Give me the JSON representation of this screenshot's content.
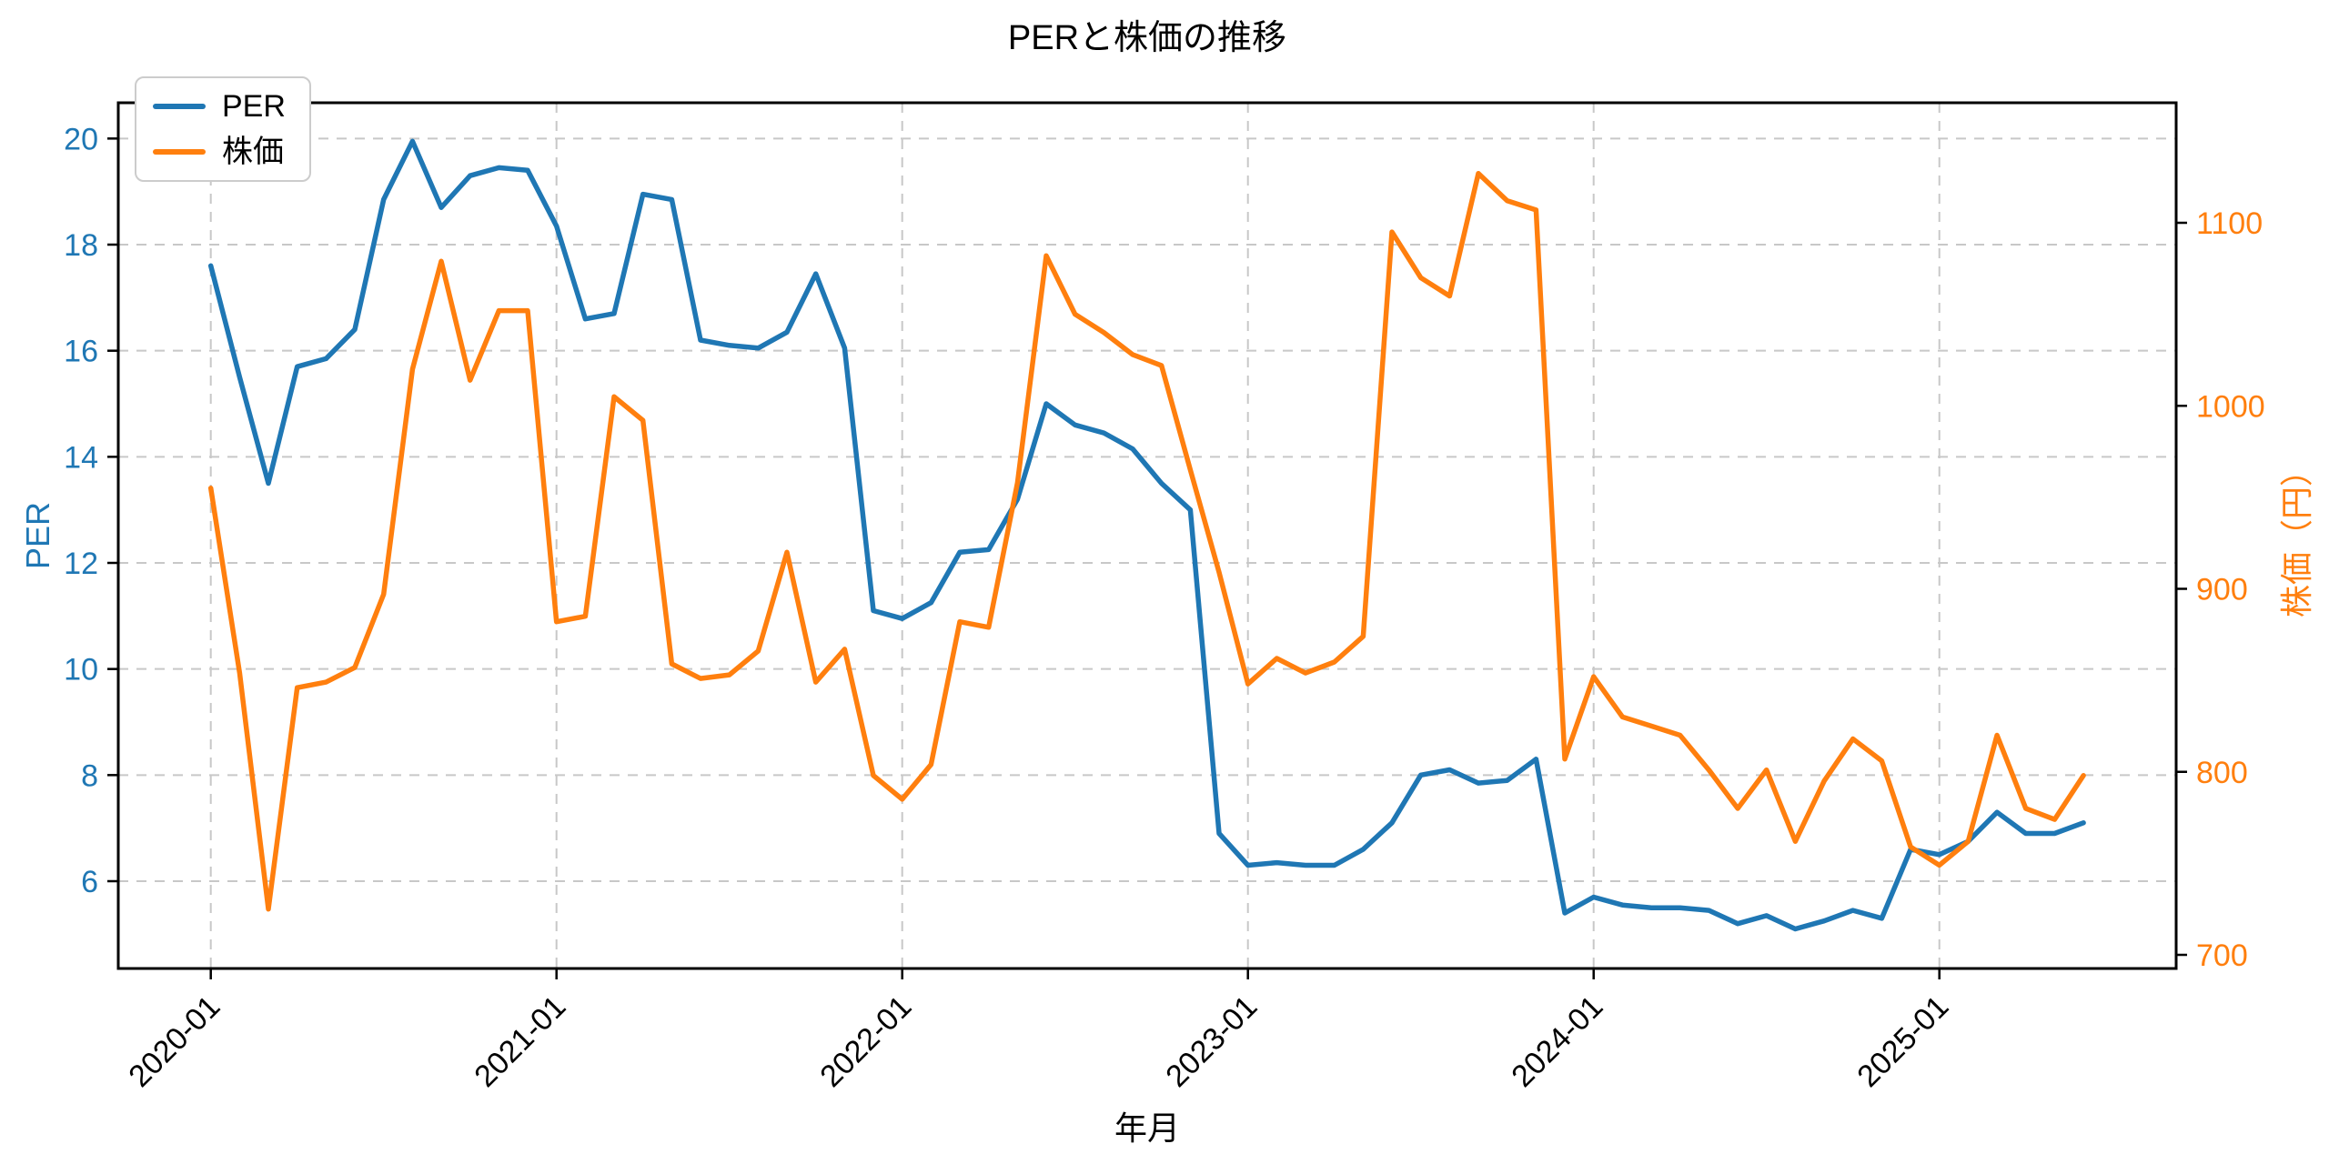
{
  "chart_data": {
    "type": "line",
    "title": "PERと株価の推移",
    "xlabel": "年月",
    "ylabel_left": "PER",
    "ylabel_right": "株価（円）",
    "grid": true,
    "legend_position": "upper left",
    "colors": {
      "per": "#1f77b4",
      "kabuka": "#ff7f0e",
      "grid": "#c8c8c8",
      "spine": "#000000"
    },
    "x": [
      "2020-01",
      "2020-02",
      "2020-03",
      "2020-04",
      "2020-05",
      "2020-06",
      "2020-07",
      "2020-08",
      "2020-09",
      "2020-10",
      "2020-11",
      "2020-12",
      "2021-01",
      "2021-02",
      "2021-03",
      "2021-04",
      "2021-05",
      "2021-06",
      "2021-07",
      "2021-08",
      "2021-09",
      "2021-10",
      "2021-11",
      "2021-12",
      "2022-01",
      "2022-02",
      "2022-03",
      "2022-04",
      "2022-05",
      "2022-06",
      "2022-07",
      "2022-08",
      "2022-09",
      "2022-10",
      "2022-11",
      "2022-12",
      "2023-01",
      "2023-02",
      "2023-03",
      "2023-04",
      "2023-05",
      "2023-06",
      "2023-07",
      "2023-08",
      "2023-09",
      "2023-10",
      "2023-11",
      "2023-12",
      "2024-01",
      "2024-02",
      "2024-03",
      "2024-04",
      "2024-05",
      "2024-06",
      "2024-07",
      "2024-08",
      "2024-09",
      "2024-10",
      "2024-11",
      "2024-12",
      "2025-01",
      "2025-02",
      "2025-03",
      "2025-04",
      "2025-05",
      "2025-06"
    ],
    "series": [
      {
        "name": "PER",
        "axis": "left",
        "color": "#1f77b4",
        "values": [
          17.6,
          15.5,
          13.5,
          15.7,
          15.85,
          16.4,
          18.85,
          19.95,
          18.7,
          19.3,
          19.45,
          19.4,
          18.35,
          16.6,
          16.7,
          18.95,
          18.85,
          16.2,
          16.1,
          16.05,
          16.35,
          17.45,
          16.05,
          11.1,
          10.95,
          11.25,
          12.2,
          12.25,
          13.2,
          15.0,
          14.6,
          14.45,
          14.15,
          13.5,
          13.0,
          6.9,
          6.3,
          6.35,
          6.3,
          6.3,
          6.6,
          7.1,
          8.0,
          8.1,
          7.85,
          7.9,
          8.3,
          5.4,
          5.7,
          5.55,
          5.5,
          5.5,
          5.45,
          5.2,
          5.35,
          5.1,
          5.25,
          5.45,
          5.3,
          6.6,
          6.5,
          6.75,
          7.3,
          6.9,
          6.9,
          7.1
        ]
      },
      {
        "name": "株価",
        "axis": "right",
        "color": "#ff7f0e",
        "values": [
          955,
          854,
          725,
          846,
          849,
          857,
          897,
          1020,
          1079,
          1014,
          1052,
          1052,
          882,
          885,
          1005,
          992,
          859,
          851,
          853,
          866,
          920,
          849,
          867,
          798,
          785,
          804,
          882,
          879,
          958,
          1082,
          1050,
          1040,
          1028,
          1022,
          965,
          909,
          848,
          862,
          854,
          860,
          874,
          1095,
          1070,
          1060,
          1127,
          1112,
          1107,
          807,
          852,
          830,
          825,
          820,
          801,
          780,
          801,
          762,
          795,
          818,
          806,
          759,
          749,
          762,
          820,
          780,
          774,
          798
        ]
      }
    ],
    "xticks": [
      "2020-01",
      "2021-01",
      "2022-01",
      "2023-01",
      "2024-01",
      "2025-01"
    ],
    "yticks_left": [
      6,
      8,
      10,
      12,
      14,
      16,
      18,
      20
    ],
    "ylim_left": [
      4.3,
      20.7
    ],
    "yticks_right": [
      700,
      800,
      900,
      1000,
      1100
    ],
    "ylim_right": [
      692,
      1166
    ]
  }
}
